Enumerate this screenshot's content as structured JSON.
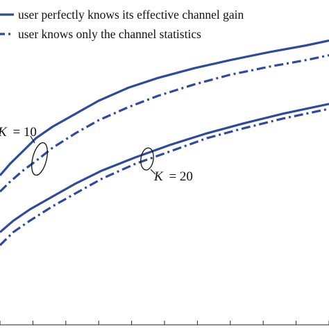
{
  "chart_data": {
    "type": "line",
    "title": "",
    "xlabel": "",
    "ylabel": "",
    "xlim": [
      0,
      10
    ],
    "ylim": [
      0,
      10
    ],
    "grid": false,
    "legend_position": "top-left",
    "line_color": "#2e4a9e",
    "series": [
      {
        "name": "user perfectly knows its effective channel gain",
        "group": "K = 10",
        "style": "solid",
        "x": [
          0.0,
          0.3,
          0.7,
          1.1,
          1.6,
          2.3,
          3.0,
          3.9,
          4.8,
          5.9,
          7.0,
          8.2,
          9.3,
          10.0
        ],
        "y": [
          4.6,
          4.95,
          5.35,
          5.75,
          6.1,
          6.5,
          6.9,
          7.3,
          7.6,
          7.9,
          8.15,
          8.4,
          8.6,
          8.75
        ]
      },
      {
        "name": "user knows only the channel statistics",
        "group": "K = 10",
        "style": "dashdot",
        "x": [
          0.0,
          0.3,
          0.7,
          1.1,
          1.6,
          2.3,
          3.0,
          3.9,
          4.8,
          5.9,
          7.0,
          8.2,
          9.3,
          10.0
        ],
        "y": [
          4.1,
          4.4,
          4.75,
          5.05,
          5.45,
          5.9,
          6.3,
          6.7,
          7.05,
          7.4,
          7.7,
          7.95,
          8.15,
          8.3
        ]
      },
      {
        "name": "",
        "group": "K = 20",
        "style": "solid",
        "x": [
          0.0,
          0.4,
          0.9,
          1.6,
          2.3,
          3.1,
          4.1,
          5.2,
          6.3,
          7.4,
          8.6,
          10.0
        ],
        "y": [
          2.85,
          3.2,
          3.55,
          3.95,
          4.35,
          4.75,
          5.15,
          5.55,
          5.9,
          6.2,
          6.5,
          6.8
        ]
      },
      {
        "name": "",
        "group": "K = 20",
        "style": "dashdot",
        "x": [
          0.0,
          0.4,
          0.9,
          1.6,
          2.3,
          3.1,
          4.1,
          5.2,
          6.3,
          7.4,
          8.6,
          10.0
        ],
        "y": [
          2.45,
          2.85,
          3.2,
          3.65,
          4.05,
          4.5,
          4.95,
          5.35,
          5.75,
          6.05,
          6.35,
          6.65
        ]
      }
    ],
    "annotations": [
      {
        "label": "K",
        "value": "= 10",
        "group": "K = 10"
      },
      {
        "label": "K",
        "value": "= 20",
        "group": "K = 20"
      }
    ]
  }
}
